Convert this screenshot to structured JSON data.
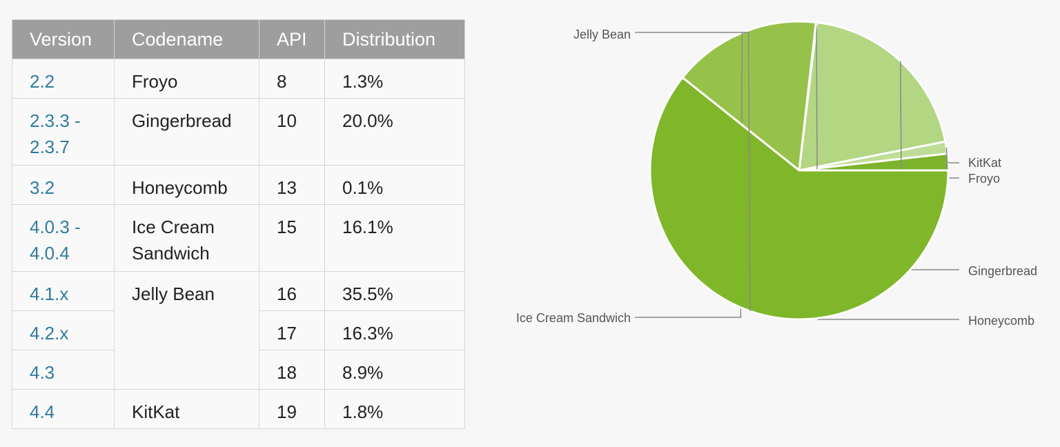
{
  "table": {
    "headers": [
      "Version",
      "Codename",
      "API",
      "Distribution"
    ],
    "rows": [
      {
        "version": "2.2",
        "codename": "Froyo",
        "api": "8",
        "distribution": "1.3%"
      },
      {
        "version": "2.3.3 -\n2.3.7",
        "codename": "Gingerbread",
        "api": "10",
        "distribution": "20.0%"
      },
      {
        "version": "3.2",
        "codename": "Honeycomb",
        "api": "13",
        "distribution": "0.1%"
      },
      {
        "version": "4.0.3 -\n4.0.4",
        "codename": "Ice Cream\nSandwich",
        "api": "15",
        "distribution": "16.1%"
      },
      {
        "version": "4.1.x",
        "codename": "Jelly Bean",
        "api": "16",
        "distribution": "35.5%"
      },
      {
        "version": "4.2.x",
        "codename": "",
        "api": "17",
        "distribution": "16.3%"
      },
      {
        "version": "4.3",
        "codename": "",
        "api": "18",
        "distribution": "8.9%"
      },
      {
        "version": "4.4",
        "codename": "KitKat",
        "api": "19",
        "distribution": "1.8%"
      }
    ]
  },
  "chart_data": {
    "type": "pie",
    "slices": [
      {
        "label": "KitKat",
        "value": 1.8,
        "color": "#7cb32a"
      },
      {
        "label": "Froyo",
        "value": 1.3,
        "color": "#bfdd96"
      },
      {
        "label": "Gingerbread",
        "value": 20.0,
        "color": "#b2d682"
      },
      {
        "label": "Honeycomb",
        "value": 0.1,
        "color": "#a8cf6e"
      },
      {
        "label": "Ice Cream Sandwich",
        "value": 16.1,
        "color": "#97c24a"
      },
      {
        "label": "Jelly Bean",
        "value": 60.7,
        "color": "#80b62a"
      }
    ],
    "label_placement": "callouts"
  }
}
